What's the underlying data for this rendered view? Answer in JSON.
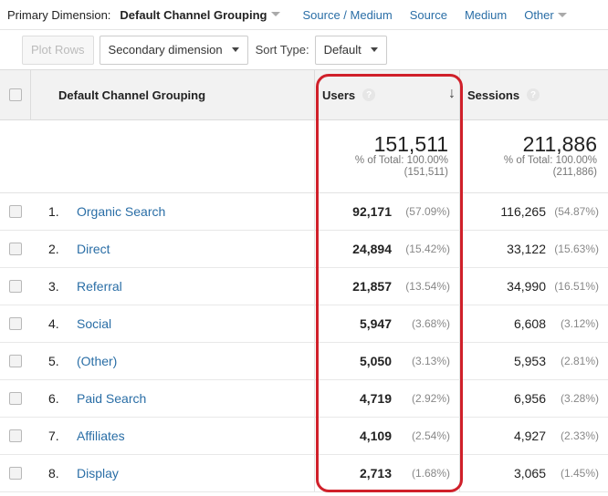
{
  "dimension_bar": {
    "label": "Primary Dimension:",
    "selected": "Default Channel Grouping",
    "options": [
      "Source / Medium",
      "Source",
      "Medium",
      "Other"
    ]
  },
  "toolbar": {
    "plot_rows": "Plot Rows",
    "secondary_dimension": "Secondary dimension",
    "sort_type_label": "Sort Type:",
    "sort_type_value": "Default"
  },
  "table": {
    "headers": {
      "dimension": "Default Channel Grouping",
      "users": "Users",
      "sessions": "Sessions",
      "help": "?"
    },
    "totals": {
      "users": {
        "value": "151,511",
        "pct": "% of Total: 100.00%",
        "abs": "(151,511)"
      },
      "sessions": {
        "value": "211,886",
        "pct": "% of Total: 100.00%",
        "abs": "(211,886)"
      }
    },
    "rows": [
      {
        "idx": "1.",
        "name": "Organic Search",
        "users": "92,171",
        "users_pct": "(57.09%)",
        "sessions": "116,265",
        "sessions_pct": "(54.87%)"
      },
      {
        "idx": "2.",
        "name": "Direct",
        "users": "24,894",
        "users_pct": "(15.42%)",
        "sessions": "33,122",
        "sessions_pct": "(15.63%)"
      },
      {
        "idx": "3.",
        "name": "Referral",
        "users": "21,857",
        "users_pct": "(13.54%)",
        "sessions": "34,990",
        "sessions_pct": "(16.51%)"
      },
      {
        "idx": "4.",
        "name": "Social",
        "users": "5,947",
        "users_pct": "(3.68%)",
        "sessions": "6,608",
        "sessions_pct": "(3.12%)"
      },
      {
        "idx": "5.",
        "name": "(Other)",
        "users": "5,050",
        "users_pct": "(3.13%)",
        "sessions": "5,953",
        "sessions_pct": "(2.81%)"
      },
      {
        "idx": "6.",
        "name": "Paid Search",
        "users": "4,719",
        "users_pct": "(2.92%)",
        "sessions": "6,956",
        "sessions_pct": "(3.28%)"
      },
      {
        "idx": "7.",
        "name": "Affiliates",
        "users": "4,109",
        "users_pct": "(2.54%)",
        "sessions": "4,927",
        "sessions_pct": "(2.33%)"
      },
      {
        "idx": "8.",
        "name": "Display",
        "users": "2,713",
        "users_pct": "(1.68%)",
        "sessions": "3,065",
        "sessions_pct": "(1.45%)"
      }
    ]
  },
  "colors": {
    "link": "#2a6ea6",
    "highlight": "#d0202a",
    "header_bg": "#f2f2f2"
  }
}
